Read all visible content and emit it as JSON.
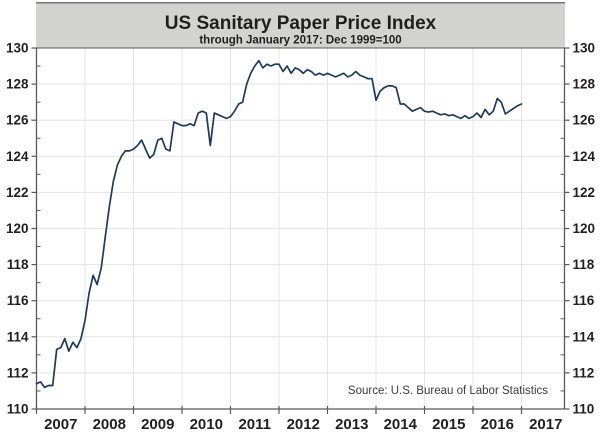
{
  "colors": {
    "line": "#1e3a5f",
    "header_bg": "#d2d2d0",
    "header_border": "#77777a",
    "grid": "#e4e4e4",
    "axis": "#58595b",
    "tick_label": "#231f20",
    "title_text": "#1f1f1f",
    "source_text": "#3c3c3c"
  },
  "chart_data": {
    "type": "line",
    "title": "US Sanitary Paper Price Index",
    "subtitle": "through January 2017: Dec 1999=100",
    "source": "Source: U.S. Bureau of Labor Statistics",
    "xlabel": "",
    "ylabel": "",
    "frequency": "monthly",
    "x_start": "2007-01",
    "x_end": "2017-01",
    "ylim": [
      110,
      130
    ],
    "y_major_step": 2,
    "y_minor_step": 1,
    "y_axis_sides": "both",
    "grid": true,
    "legend": "none",
    "x_tick_years": [
      2007,
      2008,
      2009,
      2010,
      2011,
      2012,
      2013,
      2014,
      2015,
      2016,
      2017
    ],
    "series": [
      {
        "name": "US Sanitary Paper Price Index (Dec 1999=100)",
        "values": [
          111.4,
          111.5,
          111.2,
          111.3,
          111.3,
          113.3,
          113.4,
          113.9,
          113.2,
          113.7,
          113.4,
          113.9,
          114.9,
          116.4,
          117.4,
          116.9,
          117.8,
          119.5,
          121.2,
          122.6,
          123.5,
          124.0,
          124.3,
          124.3,
          124.4,
          124.6,
          124.9,
          124.4,
          123.9,
          124.1,
          124.9,
          125.0,
          124.4,
          124.3,
          125.9,
          125.8,
          125.7,
          125.7,
          125.8,
          125.7,
          126.4,
          126.5,
          126.4,
          124.6,
          126.4,
          126.3,
          126.2,
          126.1,
          126.2,
          126.5,
          126.9,
          127.0,
          128.0,
          128.6,
          129.0,
          129.3,
          128.9,
          129.1,
          129.0,
          129.1,
          129.1,
          128.7,
          129.0,
          128.6,
          128.9,
          128.8,
          128.6,
          128.8,
          128.7,
          128.5,
          128.6,
          128.5,
          128.6,
          128.5,
          128.4,
          128.5,
          128.6,
          128.4,
          128.5,
          128.7,
          128.5,
          128.4,
          128.3,
          128.3,
          127.1,
          127.6,
          127.8,
          127.9,
          127.9,
          127.8,
          126.9,
          126.9,
          126.7,
          126.5,
          126.6,
          126.7,
          126.5,
          126.45,
          126.5,
          126.4,
          126.3,
          126.35,
          126.25,
          126.3,
          126.2,
          126.1,
          126.25,
          126.1,
          126.2,
          126.4,
          126.15,
          126.6,
          126.3,
          126.5,
          127.2,
          127.0,
          126.35,
          126.5,
          126.65,
          126.8,
          126.9
        ]
      }
    ]
  }
}
